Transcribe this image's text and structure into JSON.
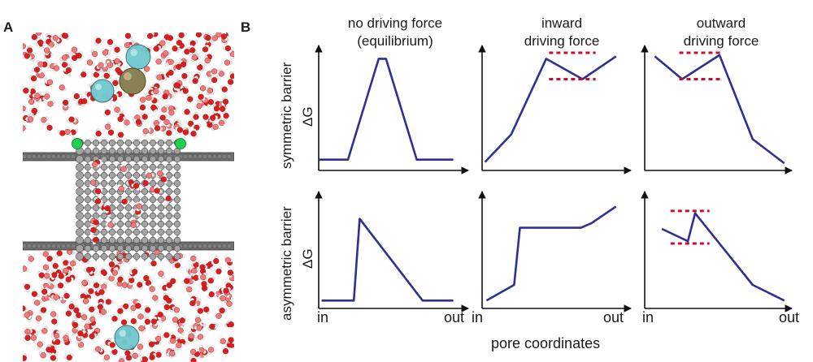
{
  "panel_a": {
    "letter": "A",
    "icon": "molecular-simulation-snapshot",
    "colors": {
      "oxygen": "#d81e1e",
      "hydrogen": "#ffffff",
      "ion_cyan": "#6fc9cf",
      "ion_gold": "#8a8154",
      "carbon": "#8e8e8e",
      "green": "#1fd14a"
    }
  },
  "panel_b": {
    "letter": "B",
    "column_titles": [
      {
        "line1": "no driving force",
        "line2": "(equilibrium)"
      },
      {
        "line1": "inward",
        "line2": "driving force"
      },
      {
        "line1": "outward",
        "line2": "driving force"
      }
    ],
    "row_labels": [
      "symmetric barrier",
      "asymmetric barrier"
    ],
    "y_axis_label": "ΔG",
    "x_ticks": {
      "start": "in",
      "end": "out"
    },
    "x_axis_label": "pore coordinates",
    "curve_color": "#2e3191",
    "marker_color": "#c8102e",
    "panels": [
      {
        "row": 0,
        "col": 0,
        "curve": [
          [
            0,
            0.09
          ],
          [
            0.2,
            0.09
          ],
          [
            0.41,
            0.93
          ],
          [
            0.46,
            0.93
          ],
          [
            0.67,
            0.09
          ],
          [
            0.92,
            0.09
          ]
        ],
        "dashed": []
      },
      {
        "row": 0,
        "col": 1,
        "curve": [
          [
            0.02,
            0.07
          ],
          [
            0.2,
            0.3
          ],
          [
            0.44,
            0.93
          ],
          [
            0.69,
            0.76
          ],
          [
            0.92,
            0.95
          ]
        ],
        "dashed": [
          0.98,
          0.76
        ]
      },
      {
        "row": 0,
        "col": 2,
        "curve": [
          [
            0.07,
            0.95
          ],
          [
            0.26,
            0.76
          ],
          [
            0.52,
            0.96
          ],
          [
            0.75,
            0.26
          ],
          [
            0.97,
            0.06
          ]
        ],
        "dashed": [
          0.98,
          0.76
        ]
      },
      {
        "row": 1,
        "col": 0,
        "curve": [
          [
            0.02,
            0.07
          ],
          [
            0.24,
            0.07
          ],
          [
            0.28,
            0.8
          ],
          [
            0.71,
            0.07
          ],
          [
            0.92,
            0.07
          ]
        ],
        "dashed": []
      },
      {
        "row": 1,
        "col": 1,
        "curve": [
          [
            0.03,
            0.07
          ],
          [
            0.22,
            0.21
          ],
          [
            0.26,
            0.72
          ],
          [
            0.68,
            0.72
          ],
          [
            0.75,
            0.76
          ],
          [
            0.92,
            0.91
          ]
        ],
        "dashed": []
      },
      {
        "row": 1,
        "col": 2,
        "curve": [
          [
            0.12,
            0.71
          ],
          [
            0.3,
            0.6
          ],
          [
            0.35,
            0.85
          ],
          [
            0.75,
            0.21
          ],
          [
            0.97,
            0.07
          ]
        ],
        "dashed": [
          0.87,
          0.58
        ]
      }
    ]
  }
}
